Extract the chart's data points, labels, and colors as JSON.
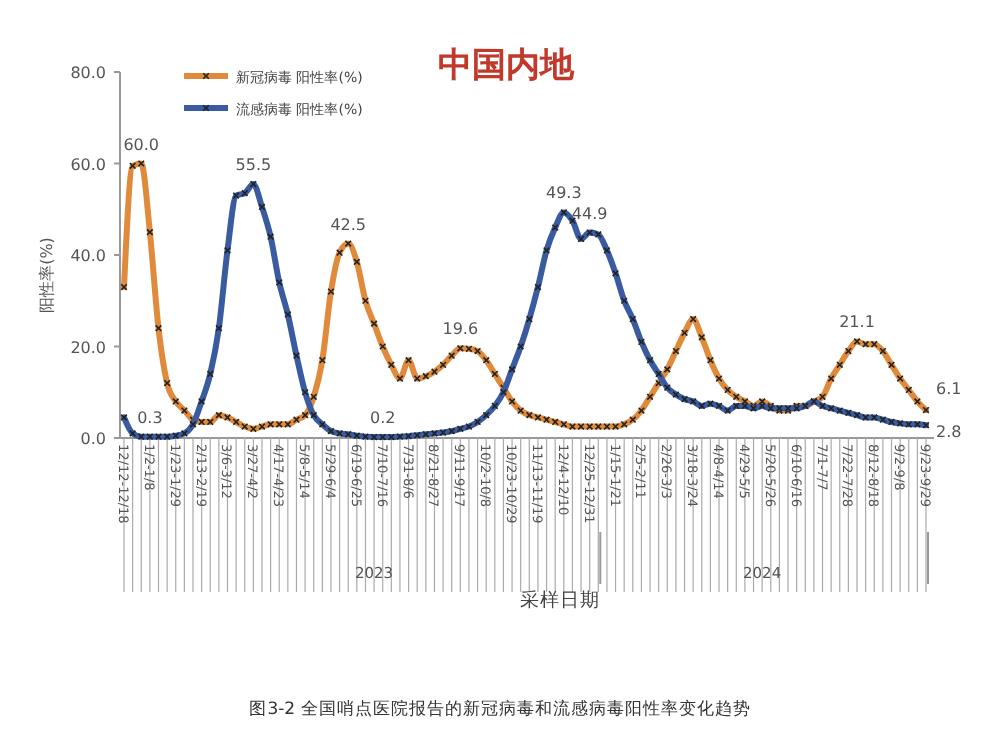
{
  "chart_data": {
    "type": "line",
    "title": "中国内地",
    "ylabel": "阳性率(%)",
    "xlabel": "采样日期",
    "categories": [
      "12/12-12/18",
      null,
      null,
      "1/2-1/8",
      null,
      null,
      "1/23-1/29",
      null,
      null,
      "2/13-2/19",
      null,
      null,
      "3/6-3/12",
      null,
      null,
      "3/27-4/2",
      null,
      null,
      "4/17-4/23",
      null,
      null,
      "5/8-5/14",
      null,
      null,
      "5/29-6/4",
      null,
      null,
      "6/19-6/25",
      null,
      null,
      "7/10-7/16",
      null,
      null,
      "7/31-8/6",
      null,
      null,
      "8/21-8/27",
      null,
      null,
      "9/11-9/17",
      null,
      null,
      "10/2-10/8",
      null,
      null,
      "10/23-10/29",
      null,
      null,
      "11/13-11/19",
      null,
      null,
      "12/4-12/10",
      null,
      null,
      "12/25-12/31",
      null,
      null,
      "1/15-1/21",
      null,
      null,
      "2/5-2/11",
      null,
      null,
      "2/26-3/3",
      null,
      null,
      "3/18-3/24",
      null,
      null,
      "4/8-4/14",
      null,
      null,
      "4/29-5/5",
      null,
      null,
      "5/20-5/26",
      null,
      null,
      "6/10-6/16",
      null,
      null,
      "7/1-7/7",
      null,
      null,
      "7/22-7/28",
      null,
      null,
      "8/12-8/18",
      null,
      null,
      "9/2-9/8",
      null,
      null,
      "9/23-9/29"
    ],
    "series": [
      {
        "name": "新冠病毒 阳性率(%)",
        "color": "#e08a3c",
        "values": [
          33,
          59.5,
          60.0,
          45,
          24,
          12,
          8,
          6,
          4,
          3.5,
          3.5,
          5,
          4.5,
          3.5,
          2.5,
          2,
          2.5,
          3,
          3,
          3,
          4,
          5,
          9,
          17,
          32,
          40.5,
          42.5,
          38.5,
          30,
          25,
          20,
          16,
          13,
          17,
          13,
          13.5,
          14.5,
          16,
          18,
          19.6,
          19.5,
          19,
          17,
          14,
          11,
          8,
          6,
          5,
          4.5,
          4,
          3.5,
          3,
          2.5,
          2.5,
          2.5,
          2.5,
          2.5,
          2.5,
          3,
          4,
          6,
          9,
          12,
          15,
          19,
          23,
          26,
          22,
          17,
          13,
          10.5,
          9,
          8,
          7,
          8,
          7,
          6,
          6,
          7,
          7,
          8,
          9,
          13,
          16,
          19,
          21.1,
          20.5,
          20.5,
          19,
          16,
          13,
          10.5,
          8,
          6.1
        ],
        "value_labels": [
          null,
          null,
          "60.0",
          null,
          null,
          null,
          null,
          null,
          null,
          null,
          null,
          null,
          null,
          null,
          null,
          null,
          null,
          null,
          null,
          null,
          null,
          null,
          null,
          null,
          null,
          null,
          "42.5",
          null,
          null,
          null,
          null,
          null,
          null,
          null,
          null,
          null,
          null,
          null,
          null,
          "19.6",
          null,
          null,
          null,
          null,
          null,
          null,
          null,
          null,
          null,
          null,
          null,
          null,
          null,
          null,
          null,
          null,
          null,
          null,
          null,
          null,
          null,
          null,
          null,
          null,
          null,
          null,
          null,
          null,
          null,
          null,
          null,
          null,
          null,
          null,
          null,
          null,
          null,
          null,
          null,
          null,
          null,
          null,
          null,
          null,
          null,
          "21.1",
          null,
          null,
          null,
          null,
          null,
          null,
          null,
          "6.1"
        ]
      },
      {
        "name": "流感病毒 阳性率(%)",
        "color": "#3a5ba0",
        "values": [
          4.5,
          1,
          0.3,
          0.3,
          0.3,
          0.3,
          0.5,
          1,
          3,
          8,
          14,
          24,
          41,
          53,
          53.5,
          55.5,
          50.5,
          44,
          34,
          27,
          18,
          10,
          5,
          3,
          1.5,
          1,
          0.8,
          0.5,
          0.3,
          0.2,
          0.2,
          0.2,
          0.3,
          0.4,
          0.6,
          0.8,
          1,
          1.2,
          1.5,
          2,
          2.5,
          3.5,
          5,
          7,
          10,
          15,
          20,
          26,
          33,
          41,
          46,
          49.3,
          47.5,
          43.5,
          44.9,
          44.5,
          41,
          36,
          30,
          26,
          21,
          17,
          14,
          11,
          9.5,
          8.5,
          8,
          7,
          7.5,
          7,
          6,
          7,
          7,
          6.5,
          7,
          6.5,
          6.5,
          6.5,
          6.5,
          7,
          8,
          7,
          6.5,
          6,
          5.5,
          5,
          4.5,
          4.5,
          4,
          3.5,
          3.2,
          3,
          3,
          2.8
        ],
        "value_labels": [
          null,
          null,
          null,
          "0.3",
          null,
          null,
          null,
          null,
          null,
          null,
          null,
          null,
          null,
          null,
          null,
          "55.5",
          null,
          null,
          null,
          null,
          null,
          null,
          null,
          null,
          null,
          null,
          null,
          null,
          null,
          null,
          "0.2",
          null,
          null,
          null,
          null,
          null,
          null,
          null,
          null,
          null,
          null,
          null,
          null,
          null,
          null,
          null,
          null,
          null,
          null,
          null,
          null,
          "49.3",
          null,
          null,
          "44.9",
          null,
          null,
          null,
          null,
          null,
          null,
          null,
          null,
          null,
          null,
          null,
          null,
          null,
          null,
          null,
          null,
          null,
          null,
          null,
          null,
          null,
          null,
          null,
          null,
          null,
          null,
          null,
          null,
          null,
          null,
          null,
          null,
          null,
          null,
          null,
          null,
          null,
          null,
          "2.8"
        ]
      }
    ],
    "ylim": [
      0,
      80
    ],
    "yticks": [
      {
        "value": 0,
        "label": "0.0"
      },
      {
        "value": 20,
        "label": "20.0"
      },
      {
        "value": 40,
        "label": "40.0"
      },
      {
        "value": 60,
        "label": "60.0"
      },
      {
        "value": 80,
        "label": "80.0"
      }
    ],
    "marker": "cross",
    "legend": "top left",
    "annotations": [
      "2023",
      "2024",
      "图3-2 全国哨点医院报告的新冠病毒和流感病毒阳性率变化趋势"
    ]
  }
}
